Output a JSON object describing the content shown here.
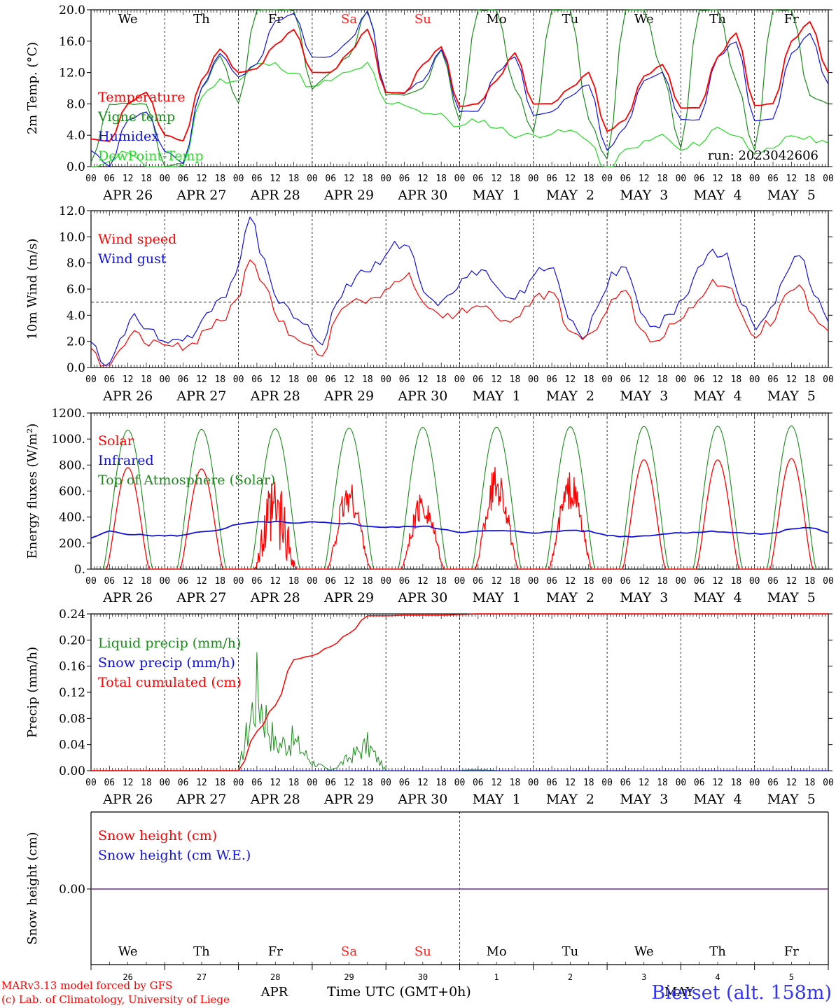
{
  "days": [
    {
      "abbr": "We",
      "date": "APR 26",
      "num": "26",
      "weekend": false
    },
    {
      "abbr": "Th",
      "date": "APR 27",
      "num": "27",
      "weekend": false
    },
    {
      "abbr": "Fr",
      "date": "APR 28",
      "num": "28",
      "weekend": false
    },
    {
      "abbr": "Sa",
      "date": "APR 29",
      "num": "29",
      "weekend": true
    },
    {
      "abbr": "Su",
      "date": "APR 30",
      "num": "30",
      "weekend": true
    },
    {
      "abbr": "Mo",
      "date": "MAY  1",
      "num": "1",
      "weekend": false
    },
    {
      "abbr": "Tu",
      "date": "MAY  2",
      "num": "2",
      "weekend": false
    },
    {
      "abbr": "We",
      "date": "MAY  3",
      "num": "3",
      "weekend": false
    },
    {
      "abbr": "Th",
      "date": "MAY  4",
      "num": "4",
      "weekend": false
    },
    {
      "abbr": "Fr",
      "date": "MAY  5",
      "num": "5",
      "weekend": false
    }
  ],
  "hour_ticks": [
    "00",
    "06",
    "12",
    "18"
  ],
  "colors": {
    "red": "#ff0000",
    "green": "#1a8c1a",
    "blue": "#1010e0",
    "lightgreen": "#22dd22",
    "purple": "#7a2a8a",
    "weekend": "#ff2020"
  },
  "footer": {
    "model": "MARv3.13 model forced by GFS",
    "lab": "(c) Lab. of Climatology, University of Liege",
    "month_apr": "APR",
    "month_may": "MAY",
    "time_label": "Time UTC (GMT+0h)",
    "station": "Bierset (alt. 158m)"
  },
  "chart_data": [
    {
      "type": "line",
      "ylabel": "2m Temp. (°C)",
      "ylim": [
        0,
        20
      ],
      "yticks": [
        "0.0",
        "4.0",
        "8.0",
        "12.0",
        "16.0",
        "20.0"
      ],
      "reference_line": 0,
      "annotation": "run: 2023042606",
      "x_hours_per_point": 6,
      "series": [
        {
          "name": "Temperature",
          "color": "red",
          "values": [
            3.5,
            3.2,
            8,
            9.5,
            4,
            3.3,
            11,
            15,
            12,
            12.5,
            15.5,
            17.5,
            12,
            12,
            14.5,
            17.5,
            9.5,
            9.3,
            13,
            15.3,
            7.7,
            8,
            11,
            14.5,
            8,
            8,
            10,
            12,
            4.5,
            6,
            11.5,
            13,
            7.5,
            7.5,
            14,
            17,
            7.8,
            8,
            16,
            18.5,
            12
          ]
        },
        {
          "name": "Vigne temp",
          "color": "green",
          "values": [
            0.5,
            8,
            8,
            8,
            0,
            0.3,
            10,
            14,
            8,
            20,
            20,
            20,
            10,
            12,
            14,
            20,
            9.2,
            9.2,
            10,
            15,
            5.8,
            20,
            20,
            10,
            4.5,
            20,
            20,
            6,
            1,
            20,
            20,
            12,
            2.5,
            20,
            20,
            11,
            2,
            20,
            20,
            9,
            8
          ]
        },
        {
          "name": "Humidex",
          "color": "blue",
          "values": [
            2,
            0,
            6,
            7,
            2,
            0.5,
            10,
            14.5,
            11.5,
            13,
            18.5,
            19.5,
            14,
            14,
            16,
            19.8,
            9.5,
            9.5,
            11,
            15,
            7,
            7,
            12,
            14,
            6.5,
            7,
            9,
            10.5,
            2,
            5,
            11,
            12,
            6,
            6,
            14,
            16,
            5.8,
            6,
            14.5,
            17,
            10.5
          ]
        },
        {
          "name": "DewPoint-Temp",
          "color": "lightgreen",
          "values": [
            -1,
            1,
            2,
            0,
            -0.5,
            0.2,
            9,
            11,
            11,
            13,
            13,
            12,
            10,
            11,
            12,
            13,
            8,
            8,
            7,
            6.5,
            5,
            6,
            5,
            4,
            4,
            4.3,
            4.5,
            3.5,
            -1,
            2,
            3,
            4,
            2,
            3,
            5,
            4,
            2,
            2,
            4,
            3.5,
            3
          ]
        }
      ]
    },
    {
      "type": "line",
      "ylabel": "10m Wind (m/s)",
      "ylim": [
        0,
        12
      ],
      "yticks": [
        "0.0",
        "2.0",
        "4.0",
        "6.0",
        "8.0",
        "10.0",
        "12.0"
      ],
      "reference_line": 5,
      "x_hours_per_point": 6,
      "series": [
        {
          "name": "Wind speed",
          "color": "red",
          "values": [
            1.5,
            0.1,
            1.5,
            2.5,
            2,
            1.5,
            1.6,
            1.8,
            3,
            3.5,
            5,
            8.5,
            6.5,
            3.5,
            2.5,
            2,
            1,
            4,
            5,
            5,
            5.5,
            6.5,
            7,
            5,
            4,
            4,
            4.5,
            5,
            4,
            3.5,
            4.5,
            5.5,
            5.5,
            3,
            2,
            3,
            5,
            6,
            3,
            2,
            3,
            4,
            5,
            6.5,
            6.5,
            4,
            2.5,
            3.5,
            5.5,
            6.5,
            4,
            2.8
          ]
        },
        {
          "name": "Wind gust",
          "color": "blue",
          "values": [
            2,
            0.2,
            2,
            3.8,
            3,
            2,
            2,
            2.3,
            4.5,
            5,
            7,
            11.5,
            8,
            5,
            4,
            3,
            1.5,
            5,
            6.5,
            7.5,
            8,
            9.5,
            9,
            6,
            5,
            6,
            7,
            7.5,
            6,
            5,
            6,
            7.5,
            7.8,
            4,
            2,
            4.5,
            7,
            7.8,
            4.5,
            3,
            4,
            5.5,
            7.5,
            8.8,
            8.5,
            5,
            3,
            4.5,
            7,
            8.7,
            5.5,
            3.5
          ]
        }
      ]
    },
    {
      "type": "line",
      "ylabel": "Energy fluxes (W/m²)",
      "ylim": [
        0,
        1200
      ],
      "yticks": [
        "0.",
        "200.",
        "400.",
        "600.",
        "800.",
        "1000.",
        "1200."
      ],
      "x_hours_per_point": 6,
      "series": [
        {
          "name": "Solar",
          "color": "red",
          "daily_peak": [
            780,
            770,
            750,
            690,
            610,
            820,
            750,
            840,
            840,
            850
          ]
        },
        {
          "name": "Infrared",
          "color": "blue",
          "values": [
            240,
            290,
            270,
            260,
            255,
            260,
            290,
            300,
            345,
            360,
            365,
            350,
            360,
            355,
            350,
            330,
            320,
            325,
            330,
            310,
            285,
            290,
            295,
            290,
            280,
            285,
            300,
            290,
            260,
            250,
            255,
            270,
            280,
            285,
            290,
            280,
            270,
            275,
            310,
            320,
            280
          ]
        },
        {
          "name": "Top of Atmosphere (Solar)",
          "color": "green",
          "daily_peak": [
            1070,
            1075,
            1080,
            1085,
            1090,
            1092,
            1095,
            1098,
            1100,
            1102
          ]
        }
      ]
    },
    {
      "type": "line",
      "ylabel": "Precip (mm/h)",
      "ylim": [
        0,
        0.24
      ],
      "yticks": [
        "0.00",
        "0.04",
        "0.08",
        "0.12",
        "0.16",
        "0.20",
        "0.24"
      ],
      "x_hours_per_point": 6,
      "series": [
        {
          "name": "Liquid precip (mm/h)",
          "color": "green",
          "values": [
            0,
            0,
            0,
            0,
            0,
            0,
            0,
            0,
            0,
            0.19,
            0.06,
            0.07,
            0.02,
            0,
            0.03,
            0.06,
            0,
            0,
            0,
            0,
            0,
            0.003,
            0,
            0,
            0,
            0,
            0,
            0,
            0,
            0,
            0,
            0,
            0,
            0,
            0,
            0,
            0,
            0,
            0,
            0,
            0
          ]
        },
        {
          "name": "Snow precip (mm/h)",
          "color": "blue",
          "values": [
            0,
            0,
            0,
            0,
            0,
            0,
            0,
            0,
            0,
            0,
            0,
            0,
            0,
            0,
            0,
            0,
            0,
            0,
            0,
            0,
            0,
            0,
            0,
            0,
            0,
            0,
            0,
            0,
            0,
            0,
            0,
            0,
            0,
            0,
            0,
            0,
            0,
            0,
            0,
            0,
            0
          ]
        },
        {
          "name": "Total cumulated (cm)",
          "color": "red",
          "values": [
            0,
            0,
            0,
            0,
            0,
            0,
            0,
            0,
            0,
            0.06,
            0.1,
            0.17,
            0.176,
            0.19,
            0.21,
            0.237,
            0.237,
            0.238,
            0.238,
            0.238,
            0.239,
            0.24,
            0.24,
            0.24,
            0.24,
            0.24,
            0.24,
            0.24,
            0.24,
            0.24,
            0.24,
            0.24,
            0.24,
            0.24,
            0.24,
            0.24,
            0.24,
            0.24,
            0.24,
            0.24,
            0.24
          ]
        }
      ]
    },
    {
      "type": "line",
      "ylabel": "Snow height (cm)",
      "yticks": [
        "0.00"
      ],
      "series": [
        {
          "name": "Snow height (cm)",
          "color": "red",
          "values": [
            0,
            0
          ]
        },
        {
          "name": "Snow height (cm W.E.)",
          "color": "blue",
          "values": [
            0,
            0
          ]
        }
      ]
    }
  ]
}
